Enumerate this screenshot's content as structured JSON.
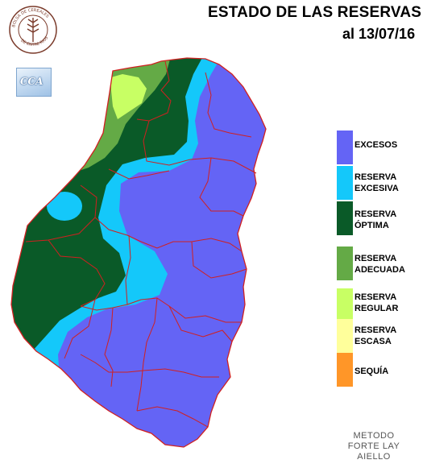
{
  "header": {
    "title": "ESTADO DE LAS RESERVAS",
    "date": "al 13/07/16"
  },
  "logos": {
    "seal_text": "BOLSA DE CEREALES DE ENTRE RIOS",
    "cca_text": "CCA"
  },
  "legend": [
    {
      "line1": "EXCESOS",
      "line2": "",
      "color": "#6464f5"
    },
    {
      "line1": "RESERVA",
      "line2": "EXCESIVA",
      "color": "#14c8fa"
    },
    {
      "line1": "RESERVA",
      "line2": "ÓPTIMA",
      "color": "#0a5a28"
    },
    {
      "line1": "RESERVA",
      "line2": "ADECUADA",
      "color": "#64aa46"
    },
    {
      "line1": "RESERVA",
      "line2": "REGULAR",
      "color": "#c8ff64"
    },
    {
      "line1": "RESERVA",
      "line2": "ESCASA",
      "color": "#ffff9b"
    },
    {
      "line1": "SEQUÍA",
      "line2": "",
      "color": "#ff9628"
    }
  ],
  "method": {
    "line1": "METODO",
    "line2": "FORTE LAY",
    "line3": "AIELLO"
  },
  "colors": {
    "department_border": "#d02020",
    "background": "#ffffff"
  }
}
